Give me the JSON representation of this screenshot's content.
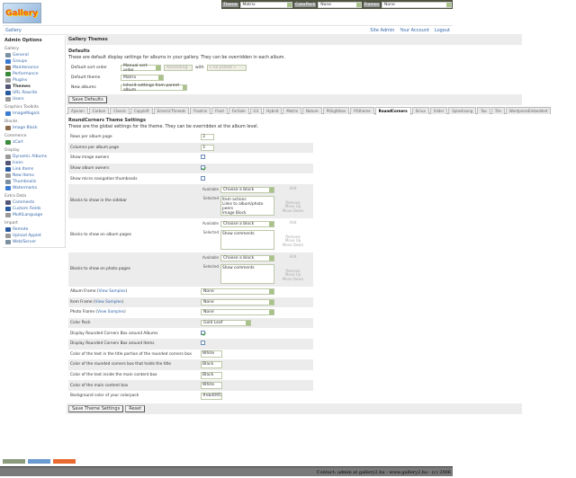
{
  "header": {
    "logo_text": "Gallery"
  },
  "themebar": {
    "theme_label": "Theme",
    "theme_value": "Matrix",
    "colorpack_label": "ColorPack",
    "colorpack_value": "None",
    "frames_label": "Frames",
    "frames_value": "None"
  },
  "nav": {
    "breadcrumb": "Gallery",
    "links": [
      "Site Admin",
      "Your Account",
      "Logout"
    ]
  },
  "sidebar": {
    "title": "Admin Options",
    "groups": [
      {
        "label": "Gallery",
        "items": [
          "General",
          "Groups",
          "Maintenance",
          "Performance",
          "Plugins",
          "Themes",
          "URL Rewrite",
          "Users"
        ]
      },
      {
        "label": "Graphics Toolkits",
        "items": [
          "ImageMagick"
        ]
      },
      {
        "label": "Blocks",
        "items": [
          "Image Block"
        ]
      },
      {
        "label": "Commerce",
        "items": [
          "zCart"
        ]
      },
      {
        "label": "Display",
        "items": [
          "Dynamic Albums",
          "Icons",
          "Link Items",
          "New Items",
          "Thumbnails",
          "Watermarks"
        ]
      },
      {
        "label": "Extra Data",
        "items": [
          "Comments",
          "Custom Fields",
          "MultiLanguage"
        ]
      },
      {
        "label": "Import",
        "items": [
          "Remote",
          "Upload Applet",
          "Web/Server"
        ]
      }
    ],
    "current": "Themes"
  },
  "main": {
    "title": "Gallery Themes",
    "defaults": {
      "heading": "Defaults",
      "description": "These are default display settings for albums in your gallery. They can be overridden in each album.",
      "sort_label": "Default sort order",
      "sort_value": "Manual sort order",
      "direction_value": "Ascending",
      "with_label": "with",
      "preset_value": "« no preset »",
      "theme_label": "Default theme",
      "theme_value": "Matrix",
      "new_albums_label": "New albums",
      "new_albums_value": "Inherit settings from parent album",
      "save_button": "Save Defaults"
    },
    "tabs": [
      "Ajaxian",
      "Carbon",
      "Classic",
      "Copyleft",
      "EclecticThreads",
      "Floatrix",
      "Fluid",
      "ForSale",
      "G3",
      "Hybrid",
      "Matrix",
      "Nature",
      "PGlightbox",
      "PGtheme",
      "RoundCorners",
      "Siriux",
      "Slider",
      "Splashsong",
      "Tao",
      "Tile",
      "WordpressEmbedded"
    ],
    "active_tab": "RoundCorners",
    "settings": {
      "heading": "RoundCorners Theme Settings",
      "description": "These are the global settings for the theme. They can be overridden at the album level.",
      "rows_label": "Rows per album page",
      "rows_value": "3",
      "cols_label": "Columns per album page",
      "cols_value": "3",
      "image_owners_label": "Show image owners",
      "image_owners": false,
      "album_owners_label": "Show album owners",
      "album_owners": true,
      "micro_label": "Show micro navigation thumbnails",
      "micro": false,
      "blocks": [
        {
          "label": "Blocks to show in the sidebar",
          "selected": [
            "Item actions",
            "Links to album/photo peers",
            "Image Block"
          ]
        },
        {
          "label": "Blocks to show on album pages",
          "selected": [
            "Show comments"
          ]
        },
        {
          "label": "Blocks to show on photo pages",
          "selected": [
            "Show comments"
          ]
        }
      ],
      "available_label": "Available",
      "selected_label": "Selected",
      "choose_block": "Choose a block",
      "add_label": "Add",
      "remove_label": "Remove",
      "moveup_label": "Move Up",
      "movedown_label": "Move Down",
      "album_frame_label": "Album Frame",
      "item_frame_label": "Item Frame",
      "photo_frame_label": "Photo Frame",
      "view_samples": "View Samples",
      "frame_value": "None",
      "color_pack_label": "Color Pack",
      "color_pack_value": "Gold Leaf",
      "rc_albums_label": "Display Rounded Corners Box around Albums",
      "rc_albums": true,
      "rc_items_label": "Display Rounded Corners Box around Items",
      "rc_items": false,
      "c1_label": "Color of the text in the title portion of the rounded corners box",
      "c1_value": "White",
      "c2_label": "Color of the rounded corners box that holds the title",
      "c2_value": "Black",
      "c3_label": "Color of the text inside the main content box",
      "c3_value": "Black",
      "c4_label": "Color of the main content box",
      "c4_value": "White",
      "c5_label": "Background color of your colorpack",
      "c5_value": "#ebd095",
      "save_button": "Save Theme Settings",
      "reset_button": "Reset"
    }
  },
  "footer": {
    "text": "Contact: admin at gallery2.hu - www.gallery2.hu - (c) 2006"
  },
  "colors": {
    "themebar": "#4e5340",
    "footer": "#7a7a7a",
    "link": "#3366aa",
    "header_gray": "#ececec"
  }
}
